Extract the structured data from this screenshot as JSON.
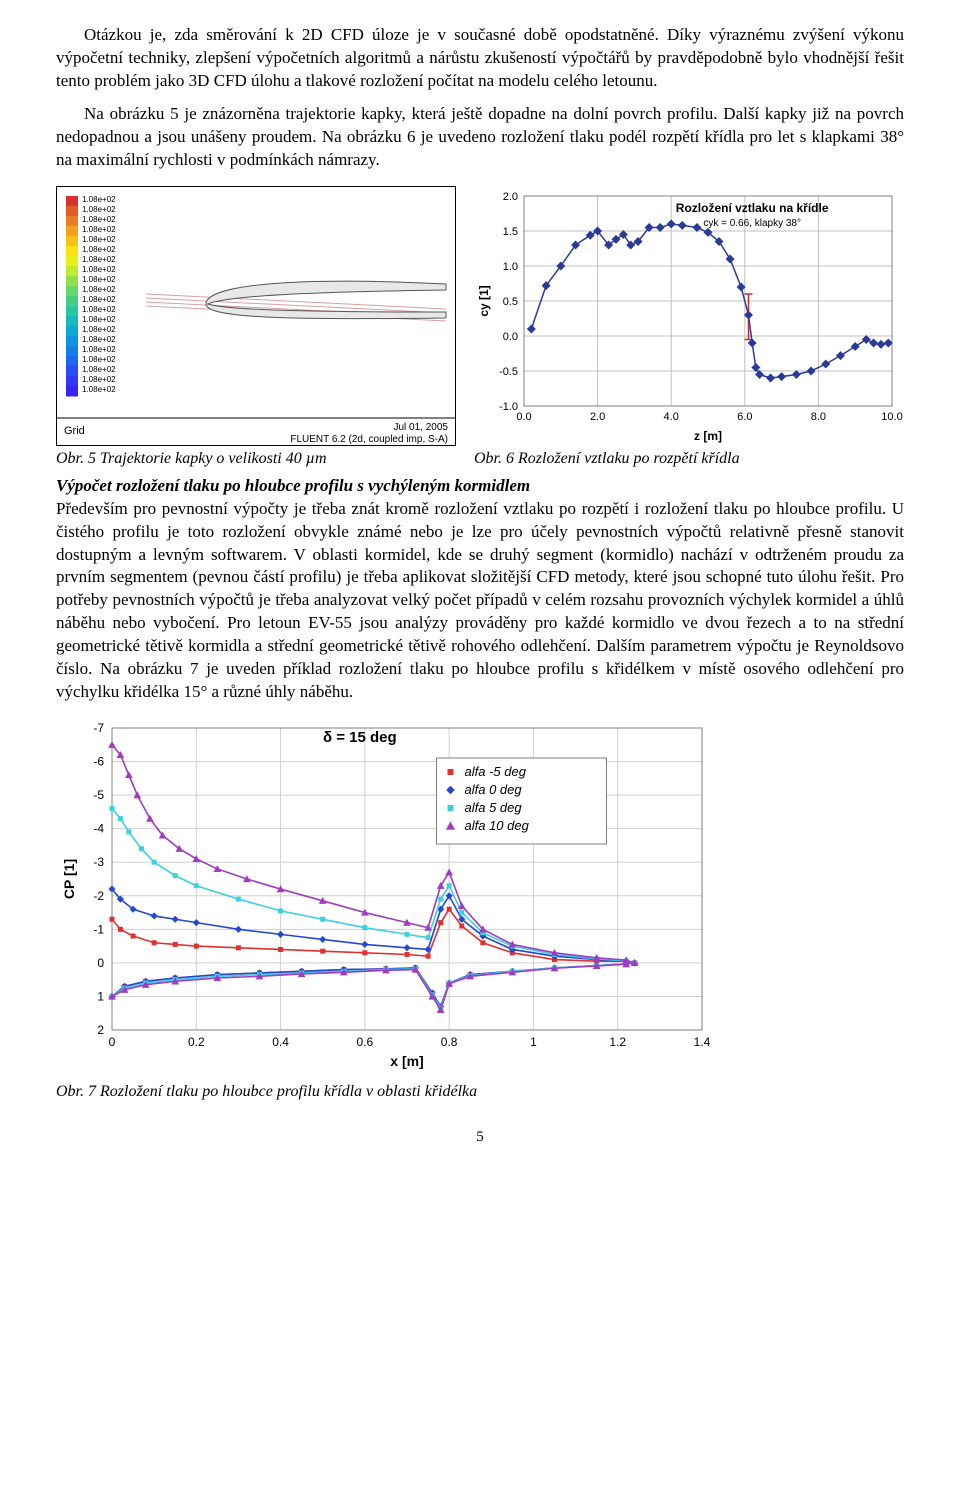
{
  "paragraphs": {
    "p1": "Otázkou je, zda směrování k 2D CFD úloze je v současné době opodstatněné. Díky výraznému zvýšení výkonu výpočetní techniky, zlepšení výpočetních algoritmů a nárůstu zkušeností výpočtářů by pravděpodobně bylo vhodnější řešit tento problém jako 3D CFD úlohu a tlakové rozložení počítat na modelu celého letounu.",
    "p2": "Na obrázku 5 je znázorněna trajektorie kapky, která ještě dopadne na dolní povrch profilu. Další kapky již na povrch nedopadnou a jsou unášeny proudem. Na obrázku 6 je uvedeno rozložení tlaku podél rozpětí křídla pro let s klapkami 38° na maximální rychlosti v podmínkách námrazy."
  },
  "fig5": {
    "caption": "Obr. 5 Trajektorie kapky o velikosti 40 µm",
    "colorbar_labels": [
      "1.08e+02",
      "1.08e+02",
      "1.08e+02",
      "1.08e+02",
      "1.08e+02",
      "1.08e+02",
      "1.08e+02",
      "1.08e+02",
      "1.08e+02",
      "1.08e+02",
      "1.08e+02",
      "1.08e+02",
      "1.08e+02",
      "1.08e+02",
      "1.08e+02",
      "1.08e+02",
      "1.08e+02",
      "1.08e+02",
      "1.08e+02",
      "1.08e+02"
    ],
    "colorbar_colors": [
      "#d93030",
      "#e25a2a",
      "#ea7e24",
      "#f1a11e",
      "#f7c318",
      "#fbe312",
      "#e7f017",
      "#c0ea2e",
      "#93e14a",
      "#67d867",
      "#44cf84",
      "#2ac5a1",
      "#1ab9bb",
      "#10a9cf",
      "#1094de",
      "#157ee8",
      "#1d66ef",
      "#264ef3",
      "#2f38f5",
      "#3824f5"
    ],
    "footer_left": "Grid",
    "footer_right_line1": "Jul 01, 2005",
    "footer_right_line2": "FLUENT 6.2 (2d, coupled imp, S-A)",
    "bg_color": "#ffffff",
    "frame_color": "#000000",
    "airfoil_stroke": "#555555",
    "airfoil_fill": "#e8e8e8",
    "trajectory_color": "#d8a0a0"
  },
  "fig6": {
    "caption": "Obr. 6 Rozložení vztlaku po rozpětí křídla",
    "title": "Rozložení vztlaku na křídle",
    "subtitle": "cyk = 0.66, klapky 38°",
    "xlabel": "z [m]",
    "ylabel": "cy [1]",
    "xlim": [
      0,
      10
    ],
    "ylim": [
      -1.0,
      2.0
    ],
    "xtick_labels": [
      "0.0",
      "2.0",
      "4.0",
      "6.0",
      "8.0",
      "10.0"
    ],
    "xtick_pos": [
      0,
      2,
      4,
      6,
      8,
      10
    ],
    "ytick_labels": [
      "-1.0",
      "-0.5",
      "0.0",
      "0.5",
      "1.0",
      "1.5",
      "2.0"
    ],
    "ytick_pos": [
      -1.0,
      -0.5,
      0.0,
      0.5,
      1.0,
      1.5,
      2.0
    ],
    "grid_color": "#c0c0c0",
    "frame_color": "#808080",
    "bg_color": "#ffffff",
    "series_color": "#2a3a99",
    "marker_size": 9,
    "error_bar_color": "#cc2a2a",
    "data": [
      {
        "z": 0.2,
        "cy": 0.1
      },
      {
        "z": 0.6,
        "cy": 0.72
      },
      {
        "z": 1.0,
        "cy": 1.0
      },
      {
        "z": 1.4,
        "cy": 1.3
      },
      {
        "z": 1.8,
        "cy": 1.44
      },
      {
        "z": 2.0,
        "cy": 1.5
      },
      {
        "z": 2.3,
        "cy": 1.3
      },
      {
        "z": 2.5,
        "cy": 1.38
      },
      {
        "z": 2.7,
        "cy": 1.45
      },
      {
        "z": 2.9,
        "cy": 1.3
      },
      {
        "z": 3.1,
        "cy": 1.35
      },
      {
        "z": 3.4,
        "cy": 1.55
      },
      {
        "z": 3.7,
        "cy": 1.55
      },
      {
        "z": 4.0,
        "cy": 1.6
      },
      {
        "z": 4.3,
        "cy": 1.58
      },
      {
        "z": 4.7,
        "cy": 1.55
      },
      {
        "z": 5.0,
        "cy": 1.48
      },
      {
        "z": 5.3,
        "cy": 1.35
      },
      {
        "z": 5.6,
        "cy": 1.1
      },
      {
        "z": 5.9,
        "cy": 0.7
      },
      {
        "z": 6.1,
        "cy": 0.3
      },
      {
        "z": 6.2,
        "cy": -0.1
      },
      {
        "z": 6.3,
        "cy": -0.45
      },
      {
        "z": 6.4,
        "cy": -0.55
      },
      {
        "z": 6.7,
        "cy": -0.6
      },
      {
        "z": 7.0,
        "cy": -0.58
      },
      {
        "z": 7.4,
        "cy": -0.55
      },
      {
        "z": 7.8,
        "cy": -0.5
      },
      {
        "z": 8.2,
        "cy": -0.4
      },
      {
        "z": 8.6,
        "cy": -0.28
      },
      {
        "z": 9.0,
        "cy": -0.15
      },
      {
        "z": 9.3,
        "cy": -0.05
      },
      {
        "z": 9.5,
        "cy": -0.1
      },
      {
        "z": 9.7,
        "cy": -0.12
      },
      {
        "z": 9.9,
        "cy": -0.1
      }
    ],
    "error_bar": {
      "z": 6.1,
      "ylo": -0.05,
      "yhi": 0.6
    }
  },
  "section_heading": "Výpočet rozložení tlaku po hloubce profilu s vychýleným kormidlem",
  "paragraphs2": {
    "p3": "Především pro pevnostní výpočty je třeba znát kromě rozložení vztlaku po rozpětí i rozložení tlaku po hloubce profilu. U čistého profilu je toto rozložení obvykle známé nebo je lze pro účely pevnostních výpočtů relativně přesně stanovit dostupným a levným softwarem. V oblasti kormidel, kde se druhý segment (kormidlo) nachází v odtrženém proudu za prvním segmentem (pevnou částí profilu) je třeba aplikovat složitější CFD metody, které jsou schopné tuto úlohu řešit. Pro potřeby pevnostních výpočtů je třeba analyzovat velký počet případů v celém rozsahu provozních výchylek kormidel a úhlů náběhu nebo vybočení. Pro letoun EV-55 jsou analýzy prováděny pro každé kormidlo ve dvou řezech a to na střední geometrické tětivě kormidla a střední geometrické tětivě rohového odlehčení. Dalším parametrem výpočtu je Reynoldsovo číslo. Na obrázku 7 je uveden příklad rozložení tlaku po hloubce profilu s křidélkem v místě osového odlehčení pro výchylku křidélka 15° a různé úhly náběhu."
  },
  "fig7": {
    "caption": "Obr. 7 Rozložení tlaku po hloubce profilu křídla v oblasti křidélka",
    "title": "δ = 15 deg",
    "xlabel": "x  [m]",
    "ylabel": "CP [1]",
    "xlim": [
      0,
      1.4
    ],
    "ylim": [
      -7,
      2
    ],
    "xtick_labels": [
      "0",
      "0.2",
      "0.4",
      "0.6",
      "0.8",
      "1",
      "1.2",
      "1.4"
    ],
    "xtick_pos": [
      0,
      0.2,
      0.4,
      0.6,
      0.8,
      1.0,
      1.2,
      1.4
    ],
    "ytick_labels": [
      "-7",
      "-6",
      "-5",
      "-4",
      "-3",
      "-2",
      "-1",
      "0",
      "1",
      "2"
    ],
    "ytick_pos": [
      -7,
      -6,
      -5,
      -4,
      -3,
      -2,
      -1,
      0,
      1,
      2
    ],
    "grid_color": "#d0d0d0",
    "frame_color": "#808080",
    "bg_color": "#ffffff",
    "legend_frame": "#808080",
    "legend": [
      {
        "label": "alfa -5 deg",
        "color": "#e03030",
        "marker": "square"
      },
      {
        "label": "alfa  0 deg",
        "color": "#2448d0",
        "marker": "diamond"
      },
      {
        "label": "alfa  5 deg",
        "color": "#3cd0e0",
        "marker": "square"
      },
      {
        "label": "alfa 10 deg",
        "color": "#a03cc0",
        "marker": "triangle"
      }
    ],
    "marker_size": 5,
    "line_width": 1.6,
    "series": {
      "alfa_m5": {
        "color": "#e03030",
        "upper": [
          [
            0.0,
            -1.3
          ],
          [
            0.02,
            -1.0
          ],
          [
            0.05,
            -0.8
          ],
          [
            0.1,
            -0.6
          ],
          [
            0.15,
            -0.55
          ],
          [
            0.2,
            -0.5
          ],
          [
            0.3,
            -0.45
          ],
          [
            0.4,
            -0.4
          ],
          [
            0.5,
            -0.35
          ],
          [
            0.6,
            -0.3
          ],
          [
            0.7,
            -0.25
          ],
          [
            0.75,
            -0.2
          ],
          [
            0.78,
            -1.2
          ],
          [
            0.8,
            -1.6
          ],
          [
            0.83,
            -1.1
          ],
          [
            0.88,
            -0.6
          ],
          [
            0.95,
            -0.3
          ],
          [
            1.05,
            -0.1
          ],
          [
            1.15,
            -0.05
          ],
          [
            1.22,
            -0.05
          ],
          [
            1.24,
            0.0
          ]
        ],
        "lower": [
          [
            0.0,
            1.0
          ],
          [
            0.03,
            0.7
          ],
          [
            0.08,
            0.55
          ],
          [
            0.15,
            0.45
          ],
          [
            0.25,
            0.35
          ],
          [
            0.35,
            0.3
          ],
          [
            0.45,
            0.25
          ],
          [
            0.55,
            0.2
          ],
          [
            0.65,
            0.18
          ],
          [
            0.72,
            0.15
          ],
          [
            0.76,
            0.9
          ],
          [
            0.78,
            1.3
          ],
          [
            0.8,
            0.6
          ],
          [
            0.85,
            0.35
          ],
          [
            0.95,
            0.25
          ],
          [
            1.05,
            0.15
          ],
          [
            1.15,
            0.08
          ],
          [
            1.22,
            0.03
          ],
          [
            1.24,
            0.0
          ]
        ]
      },
      "alfa_0": {
        "color": "#2448d0",
        "upper": [
          [
            0.0,
            -2.2
          ],
          [
            0.02,
            -1.9
          ],
          [
            0.05,
            -1.6
          ],
          [
            0.1,
            -1.4
          ],
          [
            0.15,
            -1.3
          ],
          [
            0.2,
            -1.2
          ],
          [
            0.3,
            -1.0
          ],
          [
            0.4,
            -0.85
          ],
          [
            0.5,
            -0.7
          ],
          [
            0.6,
            -0.55
          ],
          [
            0.7,
            -0.45
          ],
          [
            0.75,
            -0.4
          ],
          [
            0.78,
            -1.6
          ],
          [
            0.8,
            -2.0
          ],
          [
            0.83,
            -1.3
          ],
          [
            0.88,
            -0.8
          ],
          [
            0.95,
            -0.4
          ],
          [
            1.05,
            -0.2
          ],
          [
            1.15,
            -0.1
          ],
          [
            1.22,
            -0.05
          ],
          [
            1.24,
            0.0
          ]
        ],
        "lower": [
          [
            0.0,
            1.0
          ],
          [
            0.03,
            0.7
          ],
          [
            0.08,
            0.55
          ],
          [
            0.15,
            0.45
          ],
          [
            0.25,
            0.35
          ],
          [
            0.35,
            0.3
          ],
          [
            0.45,
            0.25
          ],
          [
            0.55,
            0.2
          ],
          [
            0.65,
            0.18
          ],
          [
            0.72,
            0.15
          ],
          [
            0.76,
            0.9
          ],
          [
            0.78,
            1.3
          ],
          [
            0.8,
            0.6
          ],
          [
            0.85,
            0.35
          ],
          [
            0.95,
            0.25
          ],
          [
            1.05,
            0.15
          ],
          [
            1.15,
            0.08
          ],
          [
            1.22,
            0.03
          ],
          [
            1.24,
            0.0
          ]
        ]
      },
      "alfa_5": {
        "color": "#3cd0e0",
        "upper": [
          [
            0.0,
            -4.6
          ],
          [
            0.02,
            -4.3
          ],
          [
            0.04,
            -3.9
          ],
          [
            0.07,
            -3.4
          ],
          [
            0.1,
            -3.0
          ],
          [
            0.15,
            -2.6
          ],
          [
            0.2,
            -2.3
          ],
          [
            0.3,
            -1.9
          ],
          [
            0.4,
            -1.55
          ],
          [
            0.5,
            -1.3
          ],
          [
            0.6,
            -1.05
          ],
          [
            0.7,
            -0.85
          ],
          [
            0.75,
            -0.75
          ],
          [
            0.78,
            -1.9
          ],
          [
            0.8,
            -2.3
          ],
          [
            0.83,
            -1.5
          ],
          [
            0.88,
            -0.9
          ],
          [
            0.95,
            -0.5
          ],
          [
            1.05,
            -0.25
          ],
          [
            1.15,
            -0.12
          ],
          [
            1.22,
            -0.06
          ],
          [
            1.24,
            0.0
          ]
        ],
        "lower": [
          [
            0.0,
            1.0
          ],
          [
            0.03,
            0.75
          ],
          [
            0.08,
            0.6
          ],
          [
            0.15,
            0.5
          ],
          [
            0.25,
            0.4
          ],
          [
            0.35,
            0.35
          ],
          [
            0.45,
            0.3
          ],
          [
            0.55,
            0.25
          ],
          [
            0.65,
            0.2
          ],
          [
            0.72,
            0.18
          ],
          [
            0.76,
            0.95
          ],
          [
            0.78,
            1.35
          ],
          [
            0.8,
            0.6
          ],
          [
            0.85,
            0.38
          ],
          [
            0.95,
            0.25
          ],
          [
            1.05,
            0.15
          ],
          [
            1.15,
            0.08
          ],
          [
            1.22,
            0.03
          ],
          [
            1.24,
            0.0
          ]
        ]
      },
      "alfa_10": {
        "color": "#a03cc0",
        "upper": [
          [
            0.0,
            -6.5
          ],
          [
            0.02,
            -6.2
          ],
          [
            0.04,
            -5.6
          ],
          [
            0.06,
            -5.0
          ],
          [
            0.09,
            -4.3
          ],
          [
            0.12,
            -3.8
          ],
          [
            0.16,
            -3.4
          ],
          [
            0.2,
            -3.1
          ],
          [
            0.25,
            -2.8
          ],
          [
            0.32,
            -2.5
          ],
          [
            0.4,
            -2.2
          ],
          [
            0.5,
            -1.85
          ],
          [
            0.6,
            -1.5
          ],
          [
            0.7,
            -1.2
          ],
          [
            0.75,
            -1.05
          ],
          [
            0.78,
            -2.3
          ],
          [
            0.8,
            -2.7
          ],
          [
            0.83,
            -1.7
          ],
          [
            0.88,
            -1.0
          ],
          [
            0.95,
            -0.55
          ],
          [
            1.05,
            -0.3
          ],
          [
            1.15,
            -0.15
          ],
          [
            1.22,
            -0.08
          ],
          [
            1.24,
            0.0
          ]
        ],
        "lower": [
          [
            0.0,
            1.0
          ],
          [
            0.03,
            0.8
          ],
          [
            0.08,
            0.65
          ],
          [
            0.15,
            0.55
          ],
          [
            0.25,
            0.45
          ],
          [
            0.35,
            0.4
          ],
          [
            0.45,
            0.33
          ],
          [
            0.55,
            0.28
          ],
          [
            0.65,
            0.22
          ],
          [
            0.72,
            0.2
          ],
          [
            0.76,
            1.0
          ],
          [
            0.78,
            1.4
          ],
          [
            0.8,
            0.62
          ],
          [
            0.85,
            0.4
          ],
          [
            0.95,
            0.28
          ],
          [
            1.05,
            0.16
          ],
          [
            1.15,
            0.09
          ],
          [
            1.22,
            0.04
          ],
          [
            1.24,
            0.0
          ]
        ]
      }
    }
  },
  "page_number": "5"
}
